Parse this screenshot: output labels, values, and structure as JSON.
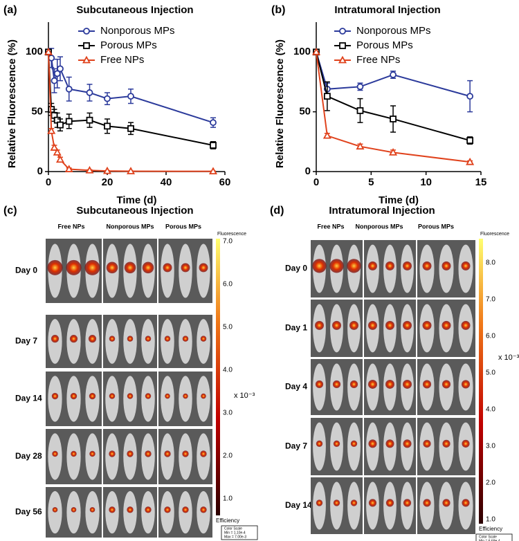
{
  "chart_data": [
    {
      "type": "line",
      "panel_label": "(a)",
      "title": "Subcutaneous Injection",
      "x_label": "Time (d)",
      "y_label": "Relative Fluorescence (%)",
      "x": [
        0,
        1,
        2,
        3,
        4,
        7,
        14,
        20,
        28,
        56
      ],
      "xlim": [
        0,
        60
      ],
      "xticks": [
        0,
        20,
        40,
        60
      ],
      "ylim": [
        0,
        125
      ],
      "yticks": [
        0,
        50,
        100
      ],
      "legend": "upper right",
      "series": [
        {
          "name": "Nonporous MPs",
          "color": "#2b3a9b",
          "marker": "circle",
          "values": [
            100,
            95,
            76,
            82,
            86,
            69,
            66,
            61,
            63,
            41
          ],
          "errors": [
            0,
            8,
            10,
            12,
            10,
            10,
            7,
            5,
            6,
            4
          ]
        },
        {
          "name": "Porous MPs",
          "color": "#000000",
          "marker": "square",
          "values": [
            100,
            52,
            47,
            43,
            39,
            42,
            43,
            38,
            36,
            22
          ],
          "errors": [
            0,
            5,
            5,
            6,
            5,
            6,
            6,
            6,
            5,
            3
          ]
        },
        {
          "name": "Free NPs",
          "color": "#e0421c",
          "marker": "triangle",
          "values": [
            100,
            34,
            20,
            16,
            10,
            2,
            1,
            0.5,
            0.3,
            0.2
          ],
          "errors": [
            0,
            2,
            2,
            2,
            2,
            1,
            0.5,
            0.3,
            0.2,
            0.2
          ]
        }
      ]
    },
    {
      "type": "line",
      "panel_label": "(b)",
      "title": "Intratumoral Injection",
      "x_label": "Time (d)",
      "y_label": "Relative Fluorescence (%)",
      "x": [
        0,
        1,
        4,
        7,
        14
      ],
      "xlim": [
        0,
        15
      ],
      "xticks": [
        0,
        5,
        10,
        15
      ],
      "ylim": [
        0,
        125
      ],
      "yticks": [
        0,
        50,
        100
      ],
      "legend": "upper right",
      "series": [
        {
          "name": "Nonporous MPs",
          "color": "#2b3a9b",
          "marker": "circle",
          "values": [
            100,
            69,
            71,
            81,
            63
          ],
          "errors": [
            0,
            5,
            3,
            3,
            13
          ]
        },
        {
          "name": "Porous MPs",
          "color": "#000000",
          "marker": "square",
          "values": [
            100,
            63,
            51,
            44,
            26
          ],
          "errors": [
            0,
            12,
            10,
            11,
            3
          ]
        },
        {
          "name": "Free NPs",
          "color": "#e0421c",
          "marker": "triangle",
          "values": [
            100,
            30,
            21,
            16,
            8
          ],
          "errors": [
            0,
            2,
            2,
            2,
            1
          ]
        }
      ]
    }
  ],
  "image_panels": [
    {
      "panel_label": "(c)",
      "title": "Subcutaneous Injection",
      "columns": [
        "Free NPs",
        "Nonporous MPs",
        "Porous MPs"
      ],
      "rows": [
        "Day 0",
        "Day 7",
        "Day 14",
        "Day 28",
        "Day 56"
      ],
      "colorbar_title": "Fluorescence",
      "colorbar_ticks": [
        "7.0",
        "6.0",
        "5.0",
        "4.0",
        "3.0",
        "2.0",
        "1.0"
      ],
      "colorbar_unit": "x 10⁻³",
      "colorbar_footer": "Efficiency",
      "scale_box": [
        "Color Scale",
        "Min = 1.10e-4",
        "Max = 7.00e-3"
      ]
    },
    {
      "panel_label": "(d)",
      "title": "Intratumoral Injection",
      "columns": [
        "Free NPs",
        "Nonporous MPs",
        "Porous MPs"
      ],
      "rows": [
        "Day 0",
        "Day 1",
        "Day 4",
        "Day 7",
        "Day 14"
      ],
      "colorbar_title": "Fluorescence",
      "colorbar_ticks": [
        "8.0",
        "7.0",
        "6.0",
        "5.0",
        "4.0",
        "3.0",
        "2.0",
        "1.0"
      ],
      "colorbar_unit": "x 10⁻³",
      "colorbar_footer": "Efficiency",
      "scale_box": [
        "Color Scale",
        "Min = 6.69e-4",
        "Max = 8.80e-3"
      ]
    }
  ]
}
